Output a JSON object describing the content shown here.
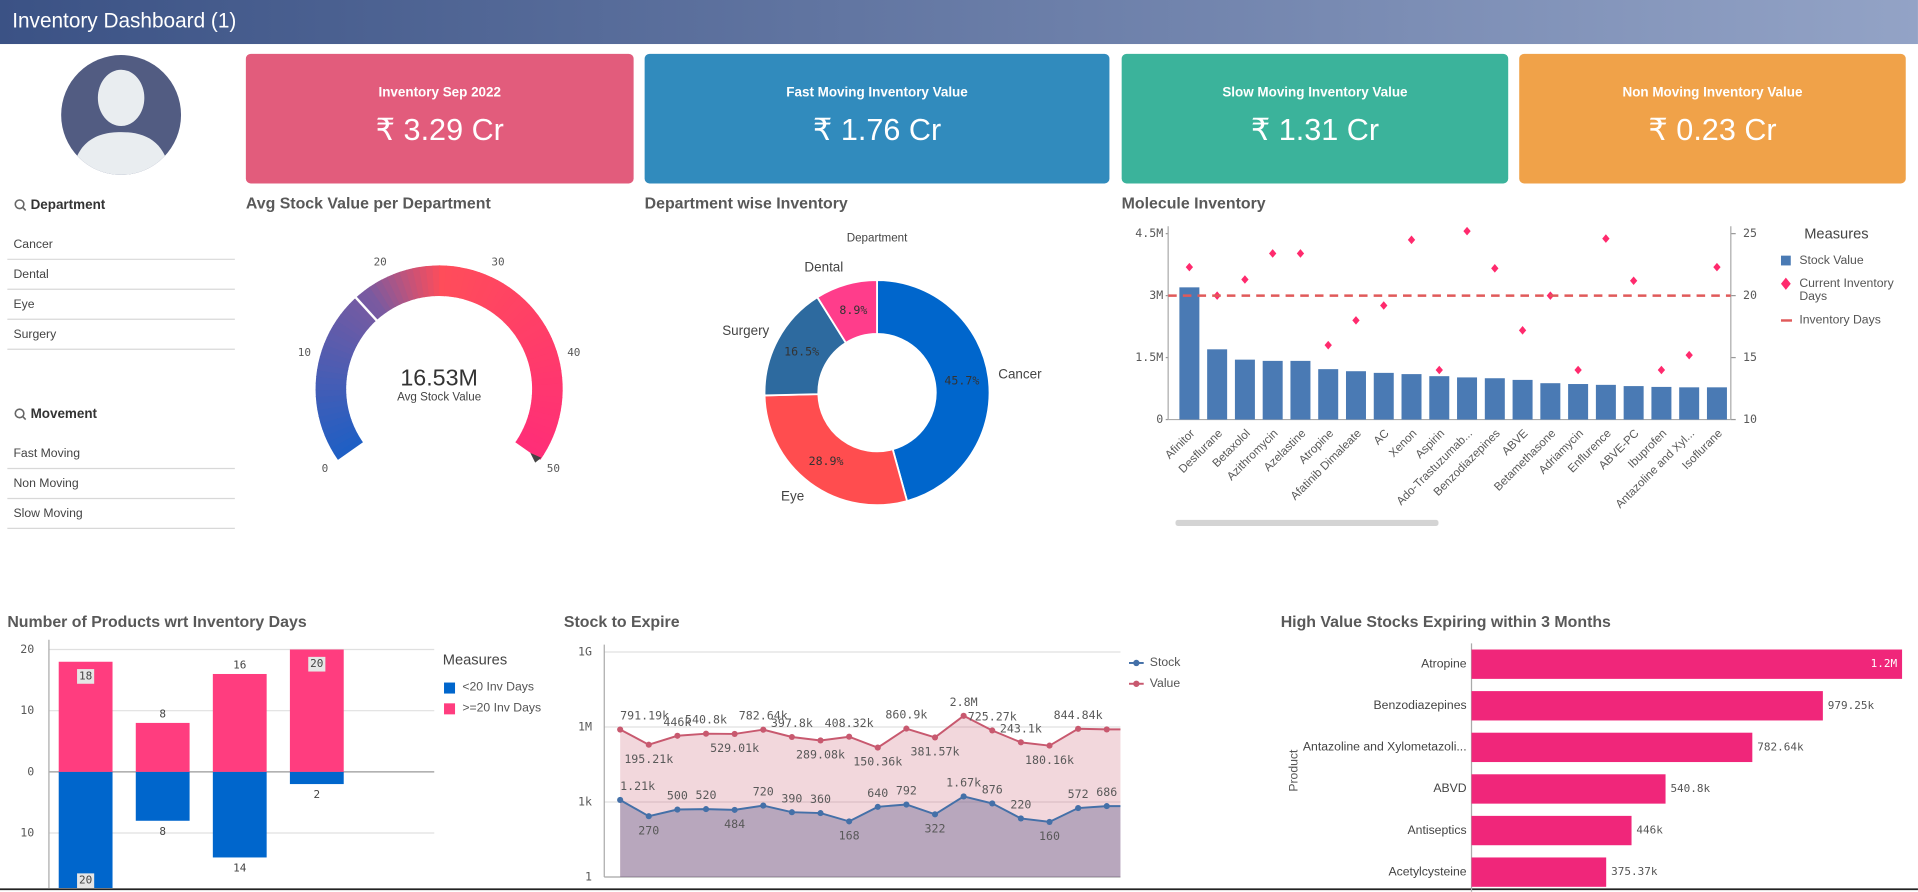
{
  "header": {
    "title": "Inventory Dashboard (1)"
  },
  "kpis": [
    {
      "label": "Inventory Sep 2022",
      "value": "₹ 3.29 Cr",
      "color": "#e25c7c"
    },
    {
      "label": "Fast Moving Inventory Value",
      "value": "₹ 1.76 Cr",
      "color": "#318bbd"
    },
    {
      "label": "Slow Moving Inventory Value",
      "value": "₹ 1.31 Cr",
      "color": "#3bb39b"
    },
    {
      "label": "Non Moving Inventory Value",
      "value": "₹ 0.23 Cr",
      "color": "#f0a249"
    }
  ],
  "filters": [
    {
      "title": "Department",
      "items": [
        "Cancer",
        "Dental",
        "Eye",
        "Surgery"
      ]
    },
    {
      "title": "Movement",
      "items": [
        "Fast Moving",
        "Non Moving",
        "Slow Moving"
      ]
    }
  ],
  "chart_data": [
    {
      "type": "gauge",
      "title": "Avg Stock Value per Department",
      "label": "Avg Stock Value",
      "values": [
        16.53
      ],
      "value_labels": [
        "16.53M"
      ],
      "ylim": [
        0,
        50
      ],
      "yticks": [
        0,
        10,
        20,
        30,
        40,
        50
      ]
    },
    {
      "type": "pie",
      "title": "Department wise Inventory",
      "legend_title": "Department",
      "categories": [
        "Cancer",
        "Eye",
        "Surgery",
        "Dental"
      ],
      "values": [
        45.7,
        28.9,
        16.5,
        8.9
      ],
      "value_labels": [
        "45.7%",
        "28.9%",
        "16.5%",
        "8.9%"
      ],
      "colors": [
        "#0066cc",
        "#ff4d4f",
        "#2d6a9f",
        "#ff3d8b"
      ]
    },
    {
      "type": "combo",
      "title": "Molecule Inventory",
      "legend_title": "Measures",
      "categories": [
        "Afinitor",
        "Desflurane",
        "Betaxolol",
        "Azithromycin",
        "Azelastine",
        "Atropine",
        "Afatinib Dimaleate",
        "AC",
        "Xenon",
        "Aspirin",
        "Ado-Trastuzumab...",
        "Benzodiazepines",
        "ABVE",
        "Betamethasone",
        "Adriamycin",
        "Enflurence",
        "ABVE-PC",
        "Ibuprofen",
        "Antazoline and Xyl...",
        "Isoflurane"
      ],
      "series": [
        {
          "name": "Stock Value",
          "kind": "bar",
          "color": "#4a7ab4",
          "values": [
            3200000,
            1700000,
            1450000,
            1420000,
            1420000,
            1220000,
            1170000,
            1130000,
            1100000,
            1050000,
            1020000,
            1000000,
            960000,
            880000,
            860000,
            840000,
            810000,
            790000,
            780000,
            780000
          ]
        },
        {
          "name": "Current Inventory Days",
          "kind": "scatter",
          "color": "#ff2a6d",
          "axis": "y2",
          "values": [
            22.3,
            20,
            21.3,
            23.4,
            23.4,
            16,
            18,
            19.2,
            24.5,
            14,
            25.2,
            22.2,
            17.2,
            20,
            14,
            24.6,
            21.2,
            14,
            15.2,
            22.3
          ]
        },
        {
          "name": "Inventory Days",
          "kind": "line",
          "color": "#e05a5a",
          "axis": "y2",
          "values": [
            20,
            20,
            20,
            20,
            20,
            20,
            20,
            20,
            20,
            20,
            20,
            20,
            20,
            20,
            20,
            20,
            20,
            20,
            20,
            20
          ]
        }
      ],
      "ylim": [
        0,
        4500000
      ],
      "yticks": [
        0,
        {
          "value": 1500000,
          "label": "1.5M"
        },
        {
          "value": 3000000,
          "label": "3M"
        },
        {
          "value": 4500000,
          "label": "4.5M"
        }
      ],
      "y2lim": [
        10,
        25
      ],
      "y2ticks": [
        10,
        15,
        20,
        25
      ]
    },
    {
      "type": "stacked_bar",
      "title": "Number of Products wrt Inventory Days",
      "legend_title": "Measures",
      "categories": [
        null,
        null,
        null,
        null
      ],
      "series": [
        {
          "name": "<20 Inv Days",
          "color": "#0066cc",
          "values": [
            -20,
            -8,
            -14,
            -2
          ],
          "value_labels": [
            "20",
            "8",
            "14",
            "2"
          ]
        },
        {
          "name": ">=20 Inv Days",
          "color": "#ff3d7f",
          "values": [
            18,
            8,
            16,
            20
          ]
        }
      ],
      "ylim": [
        -19,
        20
      ],
      "yticks": [
        {
          "value": -10,
          "label": "10"
        },
        0,
        10,
        20
      ],
      "grid": true
    },
    {
      "type": "line",
      "title": "Stock to Expire",
      "log_scale": true,
      "categories": [
        null,
        null,
        null,
        null,
        null,
        null,
        null,
        null,
        null,
        null,
        null,
        null,
        null,
        null,
        null,
        null,
        null,
        null
      ],
      "series": [
        {
          "name": "Stock",
          "color": "#4470a8",
          "fill": "rgba(90,90,140,0.38)",
          "values": [
            1210,
            270,
            500,
            520,
            484,
            720,
            390,
            360,
            168,
            640,
            792,
            322,
            1670,
            876,
            220,
            160,
            572,
            686
          ],
          "value_labels": [
            "1.21k",
            "270",
            "500",
            "520",
            "484",
            "720",
            "390",
            "360",
            "168",
            "640",
            "792",
            "322",
            "1.67k",
            "876",
            "220",
            "160",
            "572",
            "686"
          ]
        },
        {
          "name": "Value",
          "color": "#c8596f",
          "fill": "rgba(210,110,130,0.28)",
          "values": [
            791190,
            195210,
            446000,
            540800,
            529010,
            782640,
            397800,
            289080,
            408320,
            150360,
            860900,
            381570,
            2800000,
            725270,
            243100,
            180160,
            844840,
            800000
          ],
          "value_labels": [
            "791.19k",
            "195.21k",
            "446k",
            "540.8k",
            "529.01k",
            "782.64k",
            "397.8k",
            "289.08k",
            "408.32k",
            "150.36k",
            "860.9k",
            "381.57k",
            "2.8M",
            "725.27k",
            "243.1k",
            "180.16k",
            "844.84k",
            null
          ]
        }
      ],
      "ylim": [
        1,
        1000000000
      ],
      "yticks": [
        1,
        {
          "value": 1000,
          "label": "1k"
        },
        {
          "value": 1000000,
          "label": "1M"
        },
        {
          "value": 1000000000,
          "label": "1G"
        }
      ],
      "grid": true
    },
    {
      "type": "hbar",
      "title": "High Value Stocks Expiring within 3 Months",
      "y_label": "Product",
      "categories": [
        "Atropine",
        "Benzodiazepines",
        "Antazoline and Xylometazoli...",
        "ABVD",
        "Antiseptics",
        "Acetylcysteine"
      ],
      "values": [
        1200000,
        979250,
        782640,
        540800,
        446000,
        375370
      ],
      "value_labels": [
        "1.2M",
        "979.25k",
        "782.64k",
        "540.8k",
        "446k",
        "375.37k"
      ],
      "color": "#f0267a",
      "xlim": [
        0,
        1200000
      ]
    }
  ]
}
